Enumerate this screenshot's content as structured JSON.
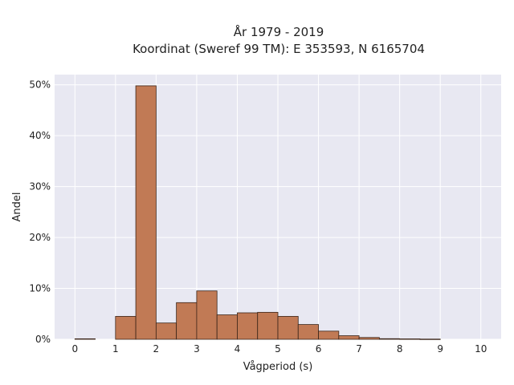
{
  "title_lines": [
    "År 1979 - 2019",
    "Koordinat (Sweref 99 TM): E 353593, N 6165704"
  ],
  "chart_data": {
    "type": "bar",
    "title": "År 1979 - 2019\nKoordinat (Sweref 99 TM): E 353593, N 6165704",
    "xlabel": "Vågperiod (s)",
    "ylabel": "Andel",
    "xlim": [
      -0.5,
      10.5
    ],
    "ylim": [
      0,
      52
    ],
    "x_ticks": [
      0,
      1,
      2,
      3,
      4,
      5,
      6,
      7,
      8,
      9,
      10
    ],
    "x_tick_labels": [
      "0",
      "1",
      "2",
      "3",
      "4",
      "5",
      "6",
      "7",
      "8",
      "9",
      "10"
    ],
    "y_ticks": [
      0,
      10,
      20,
      30,
      40,
      50
    ],
    "y_tick_labels": [
      "0%",
      "10%",
      "20%",
      "30%",
      "40%",
      "50%"
    ],
    "grid": true,
    "bin_width": 0.5,
    "bins": [
      {
        "x0": 0.0,
        "value": 0.1
      },
      {
        "x0": 1.0,
        "value": 4.5
      },
      {
        "x0": 1.5,
        "value": 49.8
      },
      {
        "x0": 2.0,
        "value": 3.2
      },
      {
        "x0": 2.5,
        "value": 7.2
      },
      {
        "x0": 3.0,
        "value": 9.5
      },
      {
        "x0": 3.5,
        "value": 4.8
      },
      {
        "x0": 4.0,
        "value": 5.2
      },
      {
        "x0": 4.5,
        "value": 5.3
      },
      {
        "x0": 5.0,
        "value": 4.5
      },
      {
        "x0": 5.5,
        "value": 2.9
      },
      {
        "x0": 6.0,
        "value": 1.6
      },
      {
        "x0": 6.5,
        "value": 0.7
      },
      {
        "x0": 7.0,
        "value": 0.35
      },
      {
        "x0": 7.5,
        "value": 0.12
      },
      {
        "x0": 8.0,
        "value": 0.08
      },
      {
        "x0": 8.5,
        "value": 0.04
      }
    ],
    "bar_color": "#c17a55",
    "bar_edge_color": "#3a2418",
    "plot_background": "#e8e8f2"
  }
}
